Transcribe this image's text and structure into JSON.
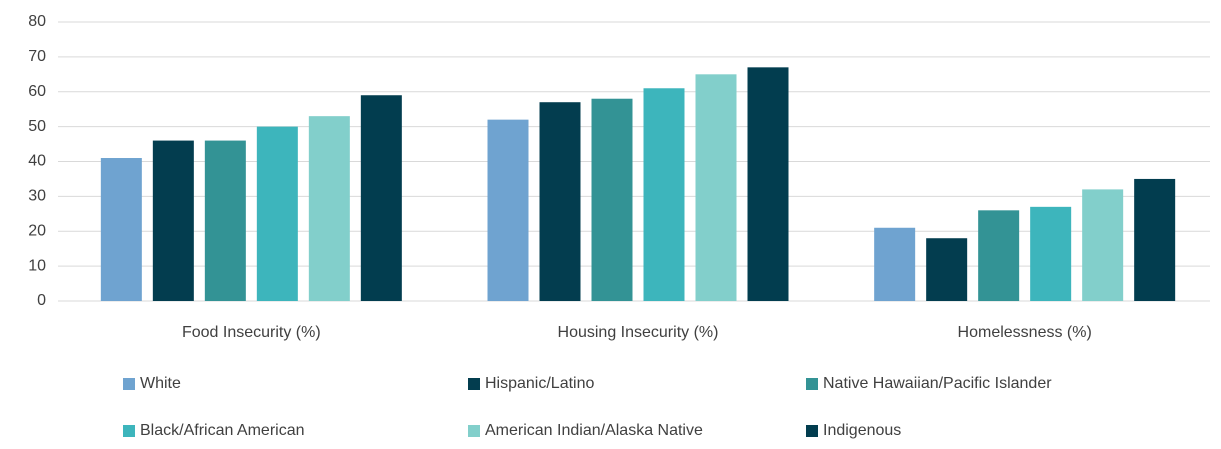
{
  "chart_data": {
    "type": "bar",
    "categories": [
      "Food Insecurity (%)",
      "Housing Insecurity (%)",
      "Homelessness (%)"
    ],
    "series": [
      {
        "name": "White",
        "color": "#6fa3d0",
        "values": [
          41,
          52,
          21
        ]
      },
      {
        "name": "Hispanic/Latino",
        "color": "#033d4f",
        "values": [
          46,
          57,
          18
        ]
      },
      {
        "name": "Native Hawaiian/Pacific Islander",
        "color": "#339395",
        "values": [
          46,
          58,
          26
        ]
      },
      {
        "name": "Black/African American",
        "color": "#3db5bc",
        "values": [
          50,
          61,
          27
        ]
      },
      {
        "name": "American Indian/Alaska Native",
        "color": "#82cfcb",
        "values": [
          53,
          65,
          32
        ]
      },
      {
        "name": "Indigenous",
        "color": "#023d4f",
        "values": [
          59,
          67,
          35
        ]
      }
    ],
    "ylim": [
      0,
      80
    ],
    "yticks": [
      0,
      10,
      20,
      30,
      40,
      50,
      60,
      70,
      80
    ],
    "grid": true,
    "legend": "bottom"
  }
}
